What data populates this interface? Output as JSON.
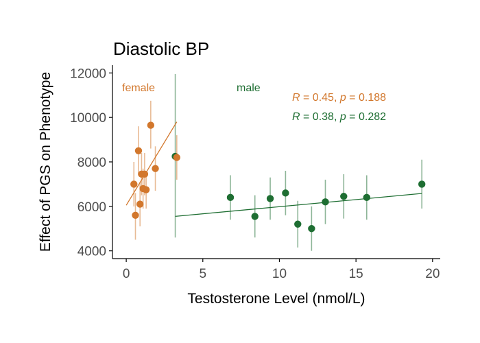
{
  "chart_data": {
    "type": "scatter",
    "title": "Diastolic BP",
    "xlabel": "Testosterone Level (nmol/L)",
    "ylabel": "Effect of PGS on Phenotype",
    "xlim": [
      -0.9,
      20.5
    ],
    "ylim": [
      3650,
      12350
    ],
    "x_ticks": [
      0,
      5,
      10,
      15,
      20
    ],
    "y_ticks": [
      4000,
      6000,
      8000,
      10000,
      12000
    ],
    "grid": false,
    "colors": {
      "female": "#d2772c",
      "male": "#1e6e32"
    },
    "series": [
      {
        "name": "female",
        "points": [
          {
            "x": 0.5,
            "y": 7000,
            "lo": 6000,
            "hi": 8000
          },
          {
            "x": 0.6,
            "y": 5600,
            "lo": 4500,
            "hi": 6600
          },
          {
            "x": 0.8,
            "y": 8500,
            "lo": 7400,
            "hi": 9600
          },
          {
            "x": 0.9,
            "y": 6100,
            "lo": 5100,
            "hi": 7100
          },
          {
            "x": 1.0,
            "y": 7450,
            "lo": 6500,
            "hi": 8400
          },
          {
            "x": 1.1,
            "y": 6800,
            "lo": 5900,
            "hi": 7700
          },
          {
            "x": 1.2,
            "y": 7450,
            "lo": 6500,
            "hi": 8400
          },
          {
            "x": 1.3,
            "y": 6750,
            "lo": 5900,
            "hi": 7600
          },
          {
            "x": 1.6,
            "y": 9650,
            "lo": 8600,
            "hi": 10750
          },
          {
            "x": 1.9,
            "y": 7700,
            "lo": 6700,
            "hi": 8700
          },
          {
            "x": 3.3,
            "y": 8200,
            "lo": 7200,
            "hi": 9200
          }
        ],
        "fit": {
          "x": [
            0.0,
            3.3
          ],
          "y": [
            6050,
            9800
          ]
        },
        "label": "female",
        "stat": {
          "R": "0.45",
          "p": "0.188"
        }
      },
      {
        "name": "male",
        "points": [
          {
            "x": 3.2,
            "y": 8250,
            "lo": 4600,
            "hi": 11950
          },
          {
            "x": 6.8,
            "y": 6400,
            "lo": 5400,
            "hi": 7400
          },
          {
            "x": 8.4,
            "y": 5550,
            "lo": 4600,
            "hi": 6500
          },
          {
            "x": 9.4,
            "y": 6350,
            "lo": 5400,
            "hi": 7300
          },
          {
            "x": 10.4,
            "y": 6600,
            "lo": 5600,
            "hi": 7600
          },
          {
            "x": 11.2,
            "y": 5200,
            "lo": 4150,
            "hi": 6250
          },
          {
            "x": 12.1,
            "y": 5000,
            "lo": 4000,
            "hi": 6000
          },
          {
            "x": 13.0,
            "y": 6200,
            "lo": 5200,
            "hi": 7200
          },
          {
            "x": 14.2,
            "y": 6450,
            "lo": 5450,
            "hi": 7450
          },
          {
            "x": 15.7,
            "y": 6400,
            "lo": 5400,
            "hi": 7400
          },
          {
            "x": 19.3,
            "y": 7000,
            "lo": 5900,
            "hi": 8100
          }
        ],
        "fit": {
          "x": [
            3.2,
            19.3
          ],
          "y": [
            5550,
            6580
          ]
        },
        "label": "male",
        "stat": {
          "R": "0.38",
          "p": "0.282"
        }
      }
    ]
  }
}
